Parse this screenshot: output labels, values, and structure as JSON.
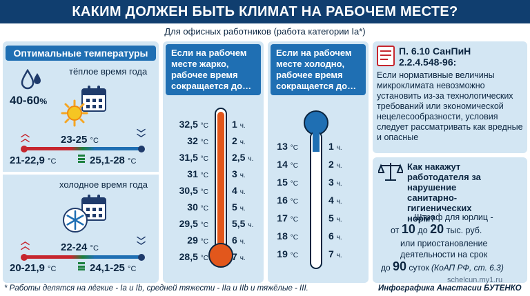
{
  "title": "КАКИМ ДОЛЖЕН БЫТЬ КЛИМАТ НА РАБОЧЕМ МЕСТЕ?",
  "subtitle": "Для офисных работников (работа категории Ia*)",
  "optimal": {
    "header": "Оптимальные температуры",
    "warm": {
      "label": "тёплое время года",
      "humidity": "40-60",
      "humidity_unit": "%",
      "center": "23-25",
      "left": "21-22,9",
      "right": "25,1-28",
      "unit": "°C"
    },
    "cold": {
      "label": "холодное время года",
      "center": "22-24",
      "left": "20-21,9",
      "right": "24,1-25",
      "unit": "°C"
    }
  },
  "hot": {
    "header": "Если на рабочем месте жарко, рабочее время сокращается до…",
    "unit": "°C",
    "hour_unit": "ч.",
    "rows": [
      {
        "temp": "32,5",
        "hours": "1"
      },
      {
        "temp": "32",
        "hours": "2"
      },
      {
        "temp": "31,5",
        "hours": "2,5"
      },
      {
        "temp": "31",
        "hours": "3"
      },
      {
        "temp": "30,5",
        "hours": "4"
      },
      {
        "temp": "30",
        "hours": "5"
      },
      {
        "temp": "29,5",
        "hours": "5,5"
      },
      {
        "temp": "29",
        "hours": "6"
      },
      {
        "temp": "28,5",
        "hours": "7"
      }
    ],
    "thermometer_color": "#e2571c"
  },
  "cold": {
    "header": "Если на рабочем месте холодно, рабочее время сокращается до…",
    "unit": "°C",
    "hour_unit": "ч.",
    "rows": [
      {
        "temp": "13",
        "hours": "1"
      },
      {
        "temp": "14",
        "hours": "2"
      },
      {
        "temp": "15",
        "hours": "3"
      },
      {
        "temp": "16",
        "hours": "4"
      },
      {
        "temp": "17",
        "hours": "5"
      },
      {
        "temp": "18",
        "hours": "6"
      },
      {
        "temp": "19",
        "hours": "7"
      }
    ],
    "thermometer_color": "#1f6fb3"
  },
  "sanpin": {
    "title": "П. 6.10 СанПиН 2.2.4.548-96:",
    "text": "Если нормативные величины микроклимата невозможно установить из-за технологических требований или экономической нецелесообразности, условия следует рассматривать как вредные и опасные"
  },
  "penalty": {
    "title": "Как накажут работодателя за нарушение санитарно-гигиенических норм?",
    "line1": "Штраф для юрлиц -",
    "from": "от",
    "min": "10",
    "to": "до",
    "max": "20",
    "money_unit": "тыс. руб.",
    "line3": "или приостановление",
    "line4": "деятельности на срок",
    "until": "до",
    "days": "90",
    "days_unit": "суток",
    "law": "(КоАП РФ, ст. 6.3)"
  },
  "footnote": "* Работы делятся на лёгкие - Ia и Ib, средней тяжести - IIa и IIb и тяжёлые - III.",
  "credit": "Инфографика Анастасии БУТЕНКО",
  "watermark": "schelcun.my1.ru",
  "colors": {
    "title_bg": "#103e6f",
    "panel_bg": "#d3e6f3",
    "header_bg": "#1f6fb3",
    "hot": "#e2571c",
    "cold": "#1f6fb3",
    "warm_red": "#c6262e",
    "neutral_green": "#1a7f3c"
  }
}
